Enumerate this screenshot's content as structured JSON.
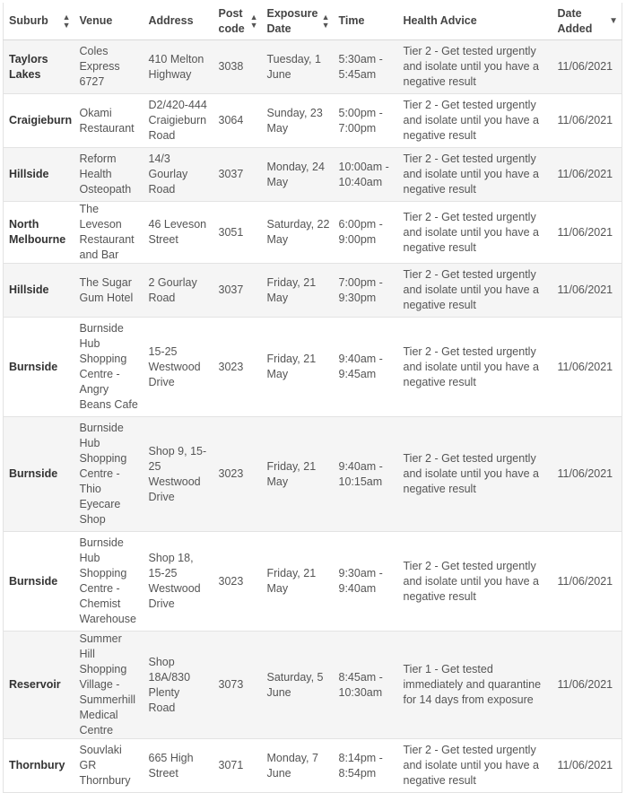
{
  "headers": {
    "suburb": "Suburb",
    "venue": "Venue",
    "address": "Address",
    "postcode": "Post code",
    "exposure_date": "Exposure Date",
    "time": "Time",
    "health_advice": "Health Advice",
    "date_added": "Date Added"
  },
  "rows": [
    {
      "suburb": "Taylors Lakes",
      "venue": "Coles Express 6727",
      "address": "410 Melton Highway",
      "postcode": "3038",
      "exposure_date": "Tuesday, 1 June",
      "time": "5:30am - 5:45am",
      "health_advice": "Tier 2 - Get tested urgently and isolate until you have a negative result",
      "date_added": "11/06/2021"
    },
    {
      "suburb": "Craigieburn",
      "venue": "Okami Restaurant",
      "address": "D2/420-444 Craigieburn Road",
      "postcode": "3064",
      "exposure_date": "Sunday, 23 May",
      "time": "5:00pm - 7:00pm",
      "health_advice": "Tier 2 - Get tested urgently and isolate until you have a negative result",
      "date_added": "11/06/2021"
    },
    {
      "suburb": "Hillside",
      "venue": "Reform Health Osteopath",
      "address": "14/3 Gourlay Road",
      "postcode": "3037",
      "exposure_date": "Monday, 24 May",
      "time": "10:00am - 10:40am",
      "health_advice": "Tier 2 - Get tested urgently and isolate until you have a negative result",
      "date_added": "11/06/2021"
    },
    {
      "suburb": "North Melbourne",
      "venue": "The Leveson Restaurant and Bar",
      "address": "46 Leveson Street",
      "postcode": "3051",
      "exposure_date": "Saturday, 22 May",
      "time": "6:00pm - 9:00pm",
      "health_advice": "Tier 2 - Get tested urgently and isolate until you have a negative result",
      "date_added": "11/06/2021"
    },
    {
      "suburb": "Hillside",
      "venue": "The Sugar Gum Hotel",
      "address": "2 Gourlay Road",
      "postcode": "3037",
      "exposure_date": "Friday, 21 May",
      "time": "7:00pm - 9:30pm",
      "health_advice": "Tier 2 - Get tested urgently and isolate until you have a negative result",
      "date_added": "11/06/2021"
    },
    {
      "suburb": "Burnside",
      "venue": "Burnside Hub Shopping Centre - Angry Beans Cafe",
      "address": "15-25 Westwood Drive",
      "postcode": "3023",
      "exposure_date": "Friday, 21 May",
      "time": "9:40am - 9:45am",
      "health_advice": "Tier 2 - Get tested urgently and isolate until you have a negative result",
      "date_added": "11/06/2021"
    },
    {
      "suburb": "Burnside",
      "venue": "Burnside Hub Shopping Centre - Thio Eyecare Shop",
      "address": "Shop 9, 15-25 Westwood Drive",
      "postcode": "3023",
      "exposure_date": "Friday, 21 May",
      "time": "9:40am - 10:15am",
      "health_advice": "Tier 2 - Get tested urgently and isolate until you have a negative result",
      "date_added": "11/06/2021"
    },
    {
      "suburb": "Burnside",
      "venue": "Burnside Hub Shopping Centre - Chemist Warehouse",
      "address": "Shop 18, 15-25 Westwood Drive",
      "postcode": "3023",
      "exposure_date": "Friday, 21 May",
      "time": "9:30am - 9:40am",
      "health_advice": "Tier 2 - Get tested urgently and isolate until you have a negative result",
      "date_added": "11/06/2021"
    },
    {
      "suburb": "Reservoir",
      "venue": "Summer Hill Shopping Village - Summerhill Medical Centre",
      "address": "Shop 18A/830 Plenty Road",
      "postcode": "3073",
      "exposure_date": "Saturday, 5 June",
      "time": "8:45am - 10:30am",
      "health_advice": "Tier 1 - Get tested immediately and quarantine for 14 days from exposure",
      "date_added": "11/06/2021"
    },
    {
      "suburb": "Thornbury",
      "venue": "Souvlaki GR Thornbury",
      "address": "665 High Street",
      "postcode": "3071",
      "exposure_date": "Monday, 7 June",
      "time": "8:14pm - 8:54pm",
      "health_advice": "Tier 2 - Get tested urgently and isolate until you have a negative result",
      "date_added": "11/06/2021"
    }
  ]
}
